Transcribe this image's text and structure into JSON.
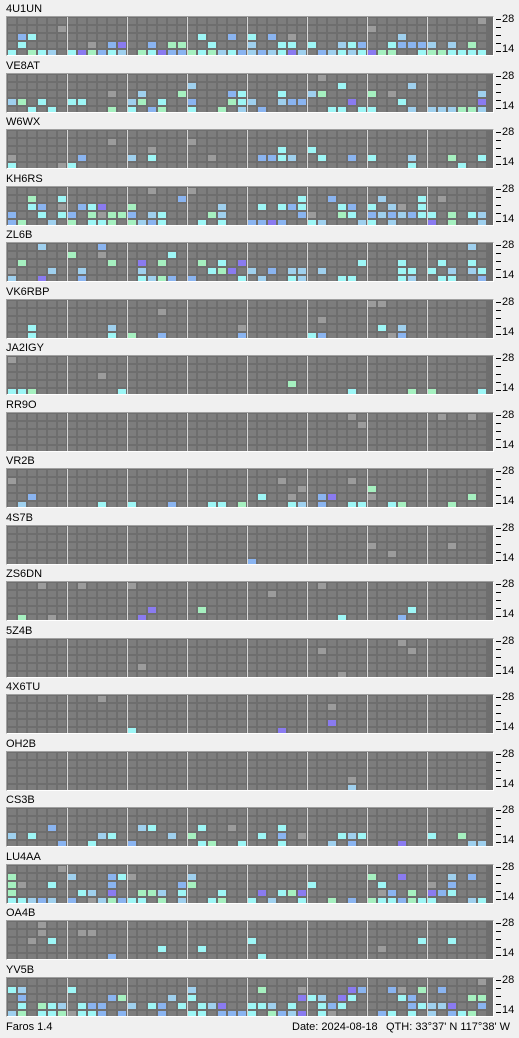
{
  "app": {
    "version": "Faros 1.4"
  },
  "status": {
    "date": "Date: 2024-08-18",
    "qth": "QTH: 33°37' N  117°38' W"
  },
  "scale_labels": {
    "top": "28",
    "bottom": "14"
  },
  "colors": {
    "background": "#f0f0f0",
    "grid_background": "#6e6e6e",
    "cell_empty": "#7d7d7d",
    "cell_weak": "#8ab4f0",
    "cell_mid": "#9fd0ee",
    "cell_strong": "#9ef6f6",
    "cell_very_strong": "#a6f0c0",
    "cell_purple": "#8a7bf0",
    "cell_marker": "#9c9c9c"
  },
  "stations": [
    {
      "call": "4U1UN",
      "activity": [
        0,
        0,
        0.25,
        0.55,
        0.75
      ]
    },
    {
      "call": "VE8AT",
      "activity": [
        0,
        0.1,
        0.15,
        0.45,
        0.4
      ]
    },
    {
      "call": "W6WX",
      "activity": [
        0,
        0,
        0.05,
        0.25,
        0.15
      ]
    },
    {
      "call": "KH6RS",
      "activity": [
        0,
        0.2,
        0.35,
        0.55,
        0.55
      ]
    },
    {
      "call": "ZL6B",
      "activity": [
        0.05,
        0.1,
        0.3,
        0.35,
        0.35
      ]
    },
    {
      "call": "VK6RBP",
      "activity": [
        0,
        0,
        0,
        0.08,
        0.2
      ]
    },
    {
      "call": "JA2IGY",
      "activity": [
        0,
        0,
        0,
        0.08,
        0.15
      ]
    },
    {
      "call": "RR9O",
      "activity": [
        0,
        0,
        0,
        0,
        0.01
      ]
    },
    {
      "call": "VR2B",
      "activity": [
        0,
        0,
        0.02,
        0.15,
        0.3
      ]
    },
    {
      "call": "4S7B",
      "activity": [
        0,
        0,
        0,
        0.01,
        0.01
      ]
    },
    {
      "call": "ZS6DN",
      "activity": [
        0,
        0,
        0,
        0.05,
        0.06
      ]
    },
    {
      "call": "5Z4B",
      "activity": [
        0,
        0,
        0,
        0,
        0.01
      ]
    },
    {
      "call": "4X6TU",
      "activity": [
        0,
        0,
        0,
        0.03,
        0.03
      ]
    },
    {
      "call": "OH2B",
      "activity": [
        0,
        0,
        0,
        0,
        0.01
      ]
    },
    {
      "call": "CS3B",
      "activity": [
        0,
        0,
        0.05,
        0.2,
        0.35
      ]
    },
    {
      "call": "LU4AA",
      "activity": [
        0,
        0.2,
        0.25,
        0.4,
        0.55
      ]
    },
    {
      "call": "OA4B",
      "activity": [
        0,
        0,
        0.02,
        0.1,
        0.05
      ]
    },
    {
      "call": "YV5B",
      "activity": [
        0,
        0.2,
        0.35,
        0.55,
        0.7
      ]
    }
  ]
}
